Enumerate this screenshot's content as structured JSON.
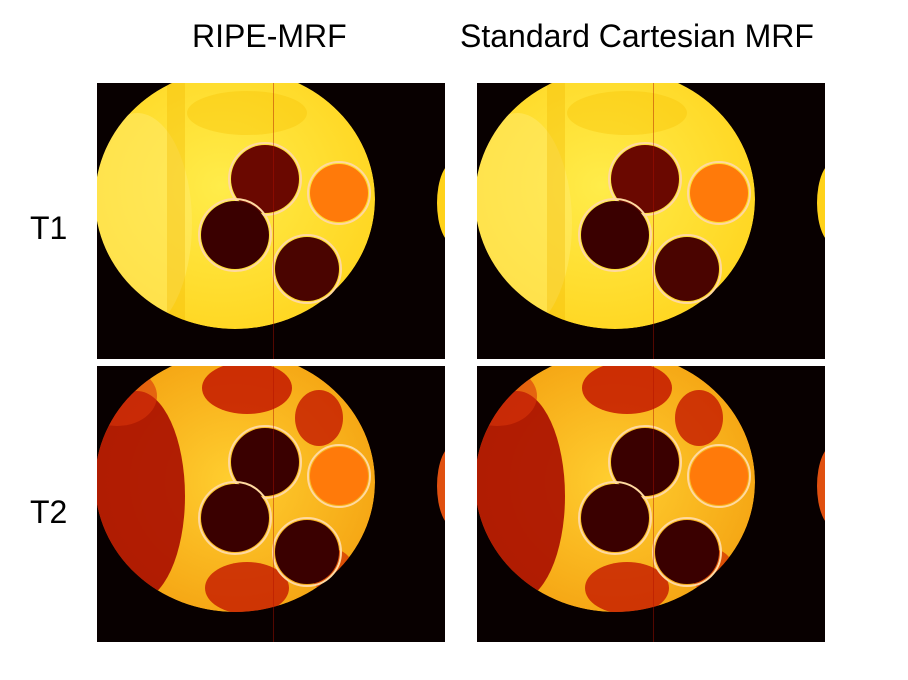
{
  "columns": [
    {
      "title": "RIPE-MRF"
    },
    {
      "title": "Standard Cartesian MRF"
    }
  ],
  "rows": [
    {
      "label": "T1",
      "map": "T1"
    },
    {
      "label": "T2",
      "map": "T2"
    }
  ],
  "colors": {
    "background": "#080000",
    "t1_phantom": "#ffd21a",
    "t1_phantom_bright": "#ffec4a",
    "t2_phantom": "#f4a010",
    "t2_band": "#a80c00",
    "vial_dark": "#3a0000",
    "vial_orange": "#ff7a0a",
    "vial_dark_red": "#5a0500",
    "vial_rim": "#ffd9a0"
  }
}
